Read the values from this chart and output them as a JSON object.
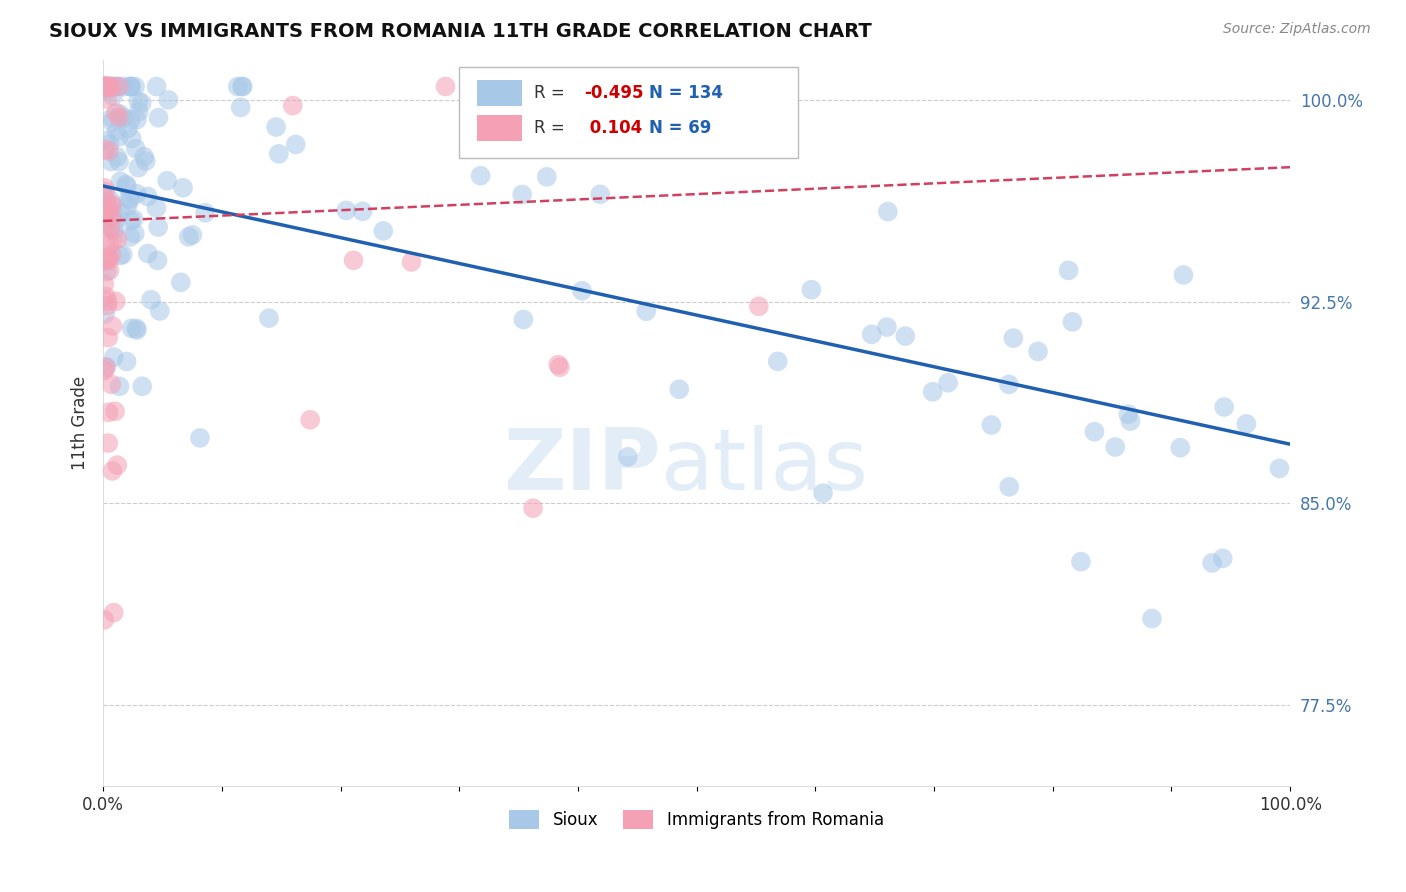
{
  "title": "SIOUX VS IMMIGRANTS FROM ROMANIA 11TH GRADE CORRELATION CHART",
  "source_text": "Source: ZipAtlas.com",
  "ylabel": "11th Grade",
  "legend_label_1": "Sioux",
  "legend_label_2": "Immigrants from Romania",
  "R1": -0.495,
  "N1": 134,
  "R2": 0.104,
  "N2": 69,
  "color_blue": "#a8c8e8",
  "color_pink": "#f4a0b5",
  "line_color_blue": "#2060b0",
  "line_color_pink": "#d04060",
  "background_color": "#ffffff",
  "grid_color": "#cccccc",
  "watermark_zip": "ZIP",
  "watermark_atlas": "atlas",
  "xlim": [
    0.0,
    1.0
  ],
  "ylim": [
    0.745,
    1.015
  ],
  "yticks": [
    0.775,
    0.85,
    0.925,
    1.0
  ],
  "ytick_labels": [
    "77.5%",
    "85.0%",
    "92.5%",
    "100.0%"
  ],
  "xticks": [
    0.0,
    0.1,
    0.2,
    0.3,
    0.4,
    0.5,
    0.6,
    0.7,
    0.8,
    0.9,
    1.0
  ],
  "xtick_labels": [
    "0.0%",
    "",
    "",
    "",
    "",
    "",
    "",
    "",
    "",
    "",
    "100.0%"
  ],
  "tick_color": "#4477aa",
  "blue_line_x0": 0.0,
  "blue_line_y0": 0.968,
  "blue_line_x1": 1.0,
  "blue_line_y1": 0.872,
  "pink_line_x0": 0.0,
  "pink_line_y0": 0.955,
  "pink_line_x1": 1.0,
  "pink_line_y1": 0.975
}
